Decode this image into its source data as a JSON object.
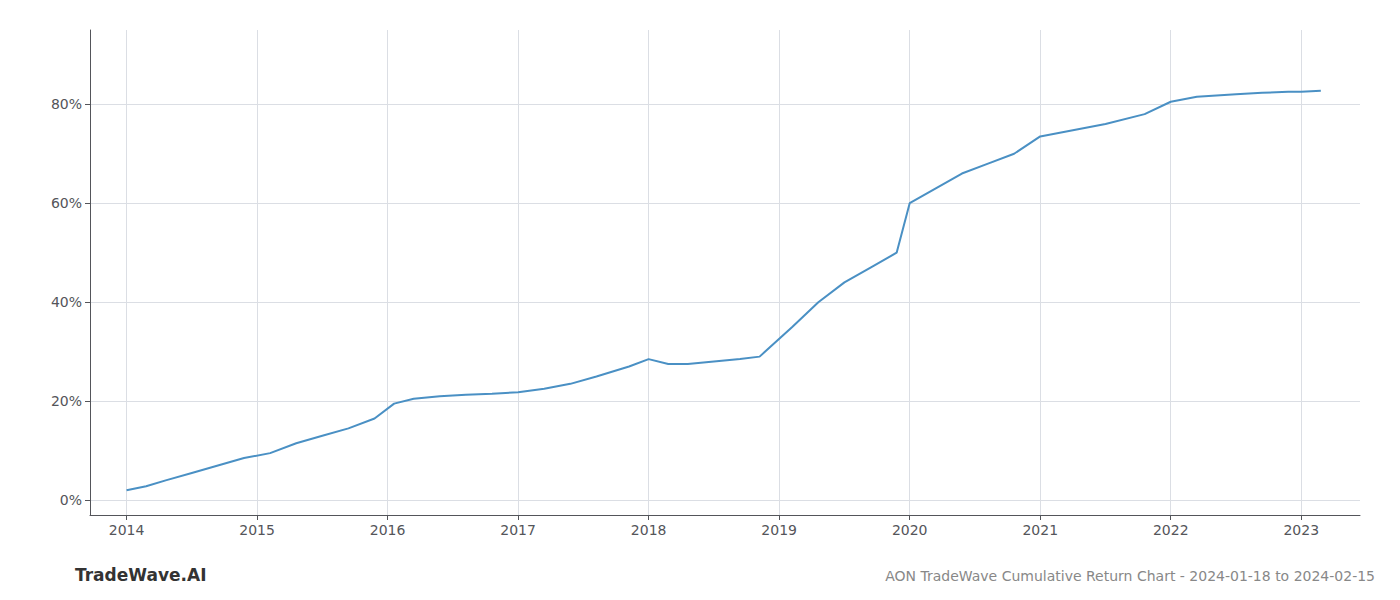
{
  "chart_data": {
    "type": "line",
    "title": "AON TradeWave Cumulative Return Chart - 2024-01-18 to 2024-02-15",
    "annotations": [
      "TradeWave.AI"
    ],
    "x": [
      2014.0,
      2014.15,
      2014.3,
      2014.5,
      2014.7,
      2014.9,
      2015.1,
      2015.3,
      2015.5,
      2015.7,
      2015.9,
      2016.05,
      2016.2,
      2016.4,
      2016.6,
      2016.8,
      2017.0,
      2017.2,
      2017.4,
      2017.6,
      2017.85,
      2018.0,
      2018.15,
      2018.3,
      2018.5,
      2018.7,
      2018.85,
      2019.1,
      2019.3,
      2019.5,
      2019.7,
      2019.9,
      2020.0,
      2020.2,
      2020.4,
      2020.6,
      2020.8,
      2021.0,
      2021.2,
      2021.5,
      2021.8,
      2022.0,
      2022.2,
      2022.5,
      2022.7,
      2022.9,
      2023.0,
      2023.15
    ],
    "values": [
      2.0,
      2.8,
      4.0,
      5.5,
      7.0,
      8.5,
      9.5,
      11.5,
      13.0,
      14.5,
      16.5,
      19.5,
      20.5,
      21.0,
      21.3,
      21.5,
      21.8,
      22.5,
      23.5,
      25.0,
      27.0,
      28.5,
      27.5,
      27.5,
      28.0,
      28.5,
      29.0,
      35.0,
      40.0,
      44.0,
      47.0,
      50.0,
      60.0,
      63.0,
      66.0,
      68.0,
      70.0,
      73.5,
      74.5,
      76.0,
      78.0,
      80.5,
      81.5,
      82.0,
      82.3,
      82.5,
      82.5,
      82.7
    ],
    "color": "#4a90c4",
    "xlim": [
      2013.72,
      2023.45
    ],
    "xticks": [
      2014,
      2015,
      2016,
      2017,
      2018,
      2019,
      2020,
      2021,
      2022,
      2023
    ],
    "ylim": [
      -3,
      95
    ],
    "yticks": [
      {
        "value": 0,
        "label": "0%"
      },
      {
        "value": 20,
        "label": "20%"
      },
      {
        "value": 40,
        "label": "40%"
      },
      {
        "value": 60,
        "label": "60%"
      },
      {
        "value": 80,
        "label": "80%"
      }
    ],
    "grid": true
  }
}
